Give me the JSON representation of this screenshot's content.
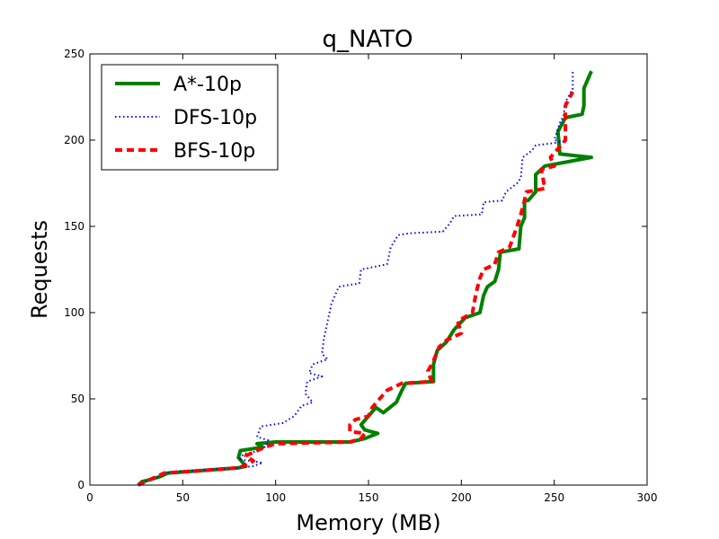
{
  "chart_data": {
    "type": "line",
    "title": "q_NATO",
    "xlabel": "Memory (MB)",
    "ylabel": "Requests",
    "xlim": [
      0,
      300
    ],
    "ylim": [
      0,
      250
    ],
    "xticks": [
      0,
      50,
      100,
      150,
      200,
      250,
      300
    ],
    "yticks": [
      0,
      50,
      100,
      150,
      200,
      250
    ],
    "legend_position": "top-left",
    "grid": false,
    "series": [
      {
        "name": "A*-10p",
        "color": "#008000",
        "style": "solid",
        "points": [
          [
            26,
            0
          ],
          [
            28,
            2
          ],
          [
            32,
            3
          ],
          [
            38,
            5
          ],
          [
            42,
            7
          ],
          [
            55,
            8
          ],
          [
            80,
            10
          ],
          [
            84,
            11
          ],
          [
            80,
            16
          ],
          [
            81,
            20
          ],
          [
            93,
            22
          ],
          [
            90,
            24
          ],
          [
            100,
            25
          ],
          [
            140,
            25
          ],
          [
            148,
            27
          ],
          [
            155,
            30
          ],
          [
            148,
            32
          ],
          [
            146,
            35
          ],
          [
            150,
            40
          ],
          [
            154,
            45
          ],
          [
            158,
            42
          ],
          [
            165,
            48
          ],
          [
            168,
            55
          ],
          [
            170,
            59
          ],
          [
            185,
            60
          ],
          [
            185,
            70
          ],
          [
            187,
            78
          ],
          [
            192,
            83
          ],
          [
            196,
            90
          ],
          [
            202,
            97
          ],
          [
            210,
            100
          ],
          [
            212,
            110
          ],
          [
            214,
            115
          ],
          [
            218,
            118
          ],
          [
            220,
            125
          ],
          [
            221,
            135
          ],
          [
            231,
            137
          ],
          [
            232,
            150
          ],
          [
            234,
            155
          ],
          [
            234,
            165
          ],
          [
            236,
            165
          ],
          [
            240,
            170
          ],
          [
            240,
            180
          ],
          [
            245,
            185
          ],
          [
            270,
            190
          ],
          [
            253,
            192
          ],
          [
            252,
            205
          ],
          [
            256,
            213
          ],
          [
            265,
            215
          ],
          [
            266,
            220
          ],
          [
            266,
            230
          ],
          [
            270,
            240
          ]
        ]
      },
      {
        "name": "DFS-10p",
        "color": "#0000ff",
        "style": "dotted",
        "points": [
          [
            26,
            0
          ],
          [
            30,
            2
          ],
          [
            36,
            4
          ],
          [
            40,
            7
          ],
          [
            46,
            8
          ],
          [
            80,
            10
          ],
          [
            88,
            11
          ],
          [
            93,
            13
          ],
          [
            80,
            15
          ],
          [
            83,
            18
          ],
          [
            92,
            20
          ],
          [
            95,
            23
          ],
          [
            96,
            26
          ],
          [
            90,
            28
          ],
          [
            92,
            34
          ],
          [
            104,
            36
          ],
          [
            110,
            40
          ],
          [
            114,
            46
          ],
          [
            120,
            48
          ],
          [
            116,
            53
          ],
          [
            117,
            60
          ],
          [
            125,
            63
          ],
          [
            118,
            65
          ],
          [
            120,
            70
          ],
          [
            128,
            73
          ],
          [
            125,
            76
          ],
          [
            126,
            85
          ],
          [
            128,
            95
          ],
          [
            130,
            105
          ],
          [
            134,
            115
          ],
          [
            145,
            117
          ],
          [
            146,
            125
          ],
          [
            160,
            128
          ],
          [
            162,
            138
          ],
          [
            166,
            145
          ],
          [
            172,
            146
          ],
          [
            190,
            147
          ],
          [
            194,
            152
          ],
          [
            196,
            156
          ],
          [
            211,
            157
          ],
          [
            212,
            164
          ],
          [
            222,
            165
          ],
          [
            224,
            170
          ],
          [
            230,
            175
          ],
          [
            232,
            178
          ],
          [
            233,
            190
          ],
          [
            238,
            194
          ],
          [
            240,
            197
          ],
          [
            255,
            199
          ],
          [
            250,
            200
          ],
          [
            253,
            210
          ],
          [
            255,
            214
          ],
          [
            256,
            222
          ],
          [
            260,
            230
          ],
          [
            260,
            240
          ]
        ]
      },
      {
        "name": "BFS-10p",
        "color": "#ff0000",
        "style": "dashed",
        "points": [
          [
            26,
            0
          ],
          [
            32,
            3
          ],
          [
            40,
            7
          ],
          [
            55,
            8
          ],
          [
            80,
            10
          ],
          [
            85,
            12
          ],
          [
            88,
            14
          ],
          [
            84,
            17
          ],
          [
            88,
            19
          ],
          [
            94,
            22
          ],
          [
            100,
            24
          ],
          [
            140,
            25
          ],
          [
            146,
            27
          ],
          [
            148,
            30
          ],
          [
            140,
            31
          ],
          [
            140,
            35
          ],
          [
            143,
            38
          ],
          [
            150,
            40
          ],
          [
            152,
            45
          ],
          [
            156,
            50
          ],
          [
            160,
            55
          ],
          [
            168,
            59
          ],
          [
            184,
            60
          ],
          [
            182,
            66
          ],
          [
            185,
            72
          ],
          [
            188,
            80
          ],
          [
            192,
            84
          ],
          [
            200,
            88
          ],
          [
            198,
            95
          ],
          [
            206,
            100
          ],
          [
            208,
            112
          ],
          [
            210,
            120
          ],
          [
            212,
            125
          ],
          [
            218,
            128
          ],
          [
            220,
            135
          ],
          [
            226,
            138
          ],
          [
            230,
            150
          ],
          [
            232,
            157
          ],
          [
            234,
            165
          ],
          [
            235,
            170
          ],
          [
            245,
            172
          ],
          [
            243,
            183
          ],
          [
            250,
            185
          ],
          [
            248,
            190
          ],
          [
            252,
            195
          ],
          [
            256,
            200
          ],
          [
            256,
            220
          ],
          [
            260,
            228
          ]
        ]
      }
    ]
  }
}
